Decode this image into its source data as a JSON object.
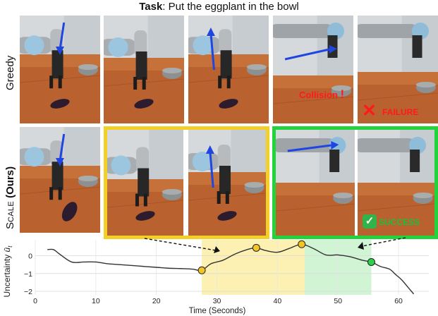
{
  "title": {
    "bold": "Task",
    "rest": ": Put the eggplant in the bowl"
  },
  "rows": {
    "greedy": {
      "label": "Greedy"
    },
    "scale": {
      "label_first": "S",
      "label_rest": "CALE",
      "label_ours": "(Ours)"
    }
  },
  "annotations": {
    "collision_text": "Collision",
    "collision_bang": "!",
    "failure_mark": "✕",
    "failure_text": "FAILURE",
    "success_mark": "✓",
    "success_text": "SUCCESS"
  },
  "colors": {
    "highlight_yellow": "#f2d027",
    "highlight_green": "#22d33b",
    "failure_red": "#ff1a1a",
    "success_green": "#19c03a",
    "arrow_blue": "#1f46e0"
  },
  "chart_data": {
    "type": "line",
    "ylabel_prefix": "Uncertainty ",
    "ylabel_symbol": "ū",
    "ylabel_sub": "t",
    "xlabel": "Time (Seconds)",
    "xlim": [
      0,
      65
    ],
    "ylim": [
      -2.2,
      0.9
    ],
    "xticks": [
      0,
      10,
      20,
      30,
      40,
      50,
      60
    ],
    "yticks": [
      0,
      -1,
      -2
    ],
    "grid": true,
    "shaded_regions": [
      {
        "x_start": 27.5,
        "x_end": 44.5,
        "color": "#fbefa6"
      },
      {
        "x_start": 44.5,
        "x_end": 55.5,
        "color": "#c9f2cd"
      }
    ],
    "series": [
      {
        "color": "#333333",
        "x": [
          2,
          3,
          4,
          6,
          8,
          10,
          12,
          14,
          16,
          18,
          20,
          22,
          24,
          26,
          27.5,
          29,
          31,
          33,
          35,
          36.5,
          38,
          40,
          42,
          44,
          46,
          48,
          50,
          52,
          54,
          55.5,
          57,
          58.5,
          59.5,
          60.5,
          61.5,
          62.5
        ],
        "y": [
          0.35,
          0.35,
          0.1,
          -0.35,
          -0.35,
          -0.35,
          -0.45,
          -0.5,
          -0.55,
          -0.6,
          -0.65,
          -0.7,
          -0.72,
          -0.75,
          -0.82,
          -0.45,
          -0.25,
          0.1,
          0.35,
          0.45,
          0.3,
          0.2,
          0.42,
          0.65,
          0.4,
          0.05,
          0.05,
          -0.05,
          -0.25,
          -0.35,
          -0.6,
          -0.75,
          -1.05,
          -1.35,
          -1.75,
          -2.15
        ]
      }
    ],
    "markers": [
      {
        "x": 27.5,
        "y": -0.82,
        "color": "#f2c524"
      },
      {
        "x": 36.5,
        "y": 0.45,
        "color": "#f2c524"
      },
      {
        "x": 44.0,
        "y": 0.65,
        "color": "#f2c524"
      },
      {
        "x": 55.5,
        "y": -0.35,
        "color": "#2bd24a"
      }
    ]
  }
}
